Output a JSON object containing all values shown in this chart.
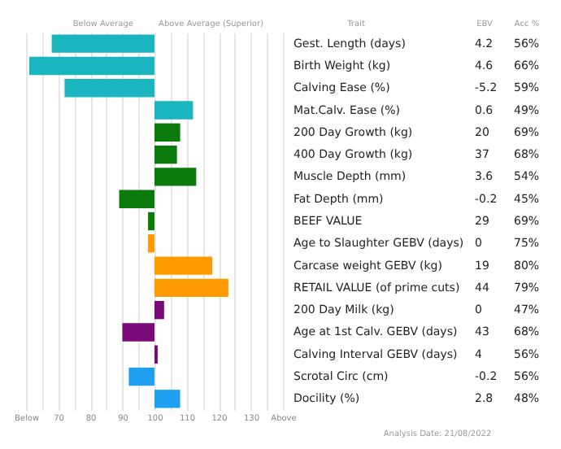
{
  "chart_data": {
    "type": "bar",
    "orientation": "horizontal",
    "categories": [
      "Gest. Length (days)",
      "Birth Weight (kg)",
      "Calving Ease (%)",
      "Mat.Calv. Ease (%)",
      "200 Day Growth (kg)",
      "400 Day Growth (kg)",
      "Muscle Depth (mm)",
      "Fat Depth (mm)",
      "BEEF VALUE",
      "Age to Slaughter GEBV (days)",
      "Carcase weight GEBV (kg)",
      "RETAIL VALUE (of prime cuts)",
      "200 Day Milk (kg)",
      "Age at 1st Calv. GEBV (days)",
      "Calving Interval GEBV (days)",
      "Scrotal Circ (cm)",
      "Docility (%)"
    ],
    "base": [
      100,
      100,
      100,
      100,
      100,
      100,
      100,
      100,
      100,
      100,
      100,
      100,
      100,
      100,
      100,
      100,
      100
    ],
    "values": [
      -32,
      -39,
      -28,
      12,
      8,
      7,
      13,
      -11,
      -2,
      -2,
      18,
      23,
      3,
      -10,
      1,
      -8,
      8
    ],
    "colors": [
      "#1ab5be",
      "#1ab5be",
      "#1ab5be",
      "#1ab5be",
      "#0a7a0a",
      "#0a7a0a",
      "#0a7a0a",
      "#0a7a0a",
      "#0a7a0a",
      "#ff9a00",
      "#ff9a00",
      "#ff9a00",
      "#7a0a7a",
      "#7a0a7a",
      "#7a0a7a",
      "#1fa0f0",
      "#1fa0f0"
    ],
    "xlim": [
      60,
      140
    ],
    "xticks": [
      {
        "value": 60,
        "label": "Below"
      },
      {
        "value": 65,
        "label": null
      },
      70,
      {
        "value": 75,
        "label": null
      },
      80,
      {
        "value": 85,
        "label": null
      },
      90,
      {
        "value": 95,
        "label": null
      },
      100,
      {
        "value": 105,
        "label": null
      },
      110,
      {
        "value": 115,
        "label": null
      },
      120,
      {
        "value": 125,
        "label": null
      },
      130,
      {
        "value": 135,
        "label": null
      },
      {
        "value": 140,
        "label": "Above"
      }
    ],
    "grid": "x",
    "annotations": [
      "Below Average",
      "Above Average (Superior)",
      "Trait",
      "EBV",
      "Acc %",
      "Analysis Date: 21/08/2022",
      "4.2",
      "56%",
      "4.6",
      "66%",
      "-5.2",
      "59%",
      "0.6",
      "49%",
      "20",
      "69%",
      "37",
      "68%",
      "3.6",
      "54%",
      "-0.2",
      "45%",
      "29",
      "69%",
      "0",
      "75%",
      "19",
      "80%",
      "44",
      "79%",
      "0",
      "47%",
      "43",
      "68%",
      "4",
      "56%",
      "-0.2",
      "56%",
      "2.8",
      "48%"
    ]
  }
}
